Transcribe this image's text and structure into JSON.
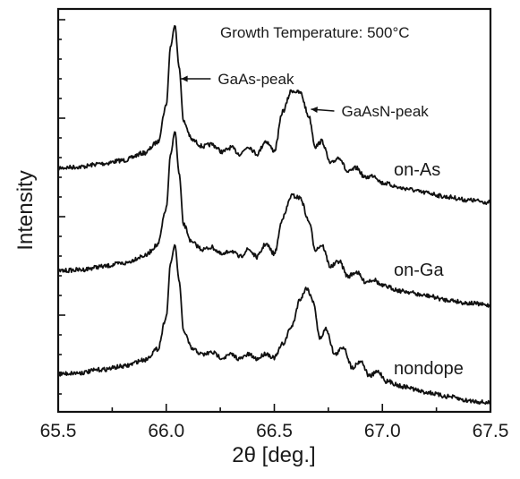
{
  "chart_data": {
    "type": "line",
    "title": "",
    "annotation_header": "Growth Temperature: 500°C",
    "xlabel": "2θ [deg.]",
    "ylabel": "Intensity",
    "xlim": [
      65.5,
      67.5
    ],
    "x_ticks": [
      "65.5",
      "66.0",
      "66.5",
      "67.0",
      "67.5"
    ],
    "y_ticklabels": "none",
    "grid": false,
    "legend": "inline labels at right",
    "series": [
      {
        "name": "on-As",
        "offset": 2,
        "points": [
          [
            65.5,
            0.02
          ],
          [
            65.6,
            0.03
          ],
          [
            65.7,
            0.06
          ],
          [
            65.8,
            0.09
          ],
          [
            65.9,
            0.16
          ],
          [
            65.96,
            0.26
          ],
          [
            66.0,
            0.6
          ],
          [
            66.02,
            1.15
          ],
          [
            66.04,
            1.35
          ],
          [
            66.06,
            0.95
          ],
          [
            66.08,
            0.45
          ],
          [
            66.12,
            0.28
          ],
          [
            66.17,
            0.22
          ],
          [
            66.21,
            0.24
          ],
          [
            66.26,
            0.17
          ],
          [
            66.3,
            0.21
          ],
          [
            66.34,
            0.15
          ],
          [
            66.38,
            0.22
          ],
          [
            66.42,
            0.15
          ],
          [
            66.46,
            0.27
          ],
          [
            66.5,
            0.18
          ],
          [
            66.54,
            0.55
          ],
          [
            66.58,
            0.74
          ],
          [
            66.62,
            0.72
          ],
          [
            66.66,
            0.5
          ],
          [
            66.69,
            0.22
          ],
          [
            66.72,
            0.27
          ],
          [
            66.76,
            0.06
          ],
          [
            66.8,
            0.12
          ],
          [
            66.84,
            -0.02
          ],
          [
            66.88,
            0.02
          ],
          [
            66.92,
            -0.07
          ],
          [
            66.96,
            -0.05
          ],
          [
            67.0,
            -0.12
          ],
          [
            67.1,
            -0.17
          ],
          [
            67.2,
            -0.21
          ],
          [
            67.3,
            -0.25
          ],
          [
            67.4,
            -0.28
          ],
          [
            67.5,
            -0.3
          ]
        ]
      },
      {
        "name": "on-Ga",
        "offset": 1,
        "points": [
          [
            65.5,
            0.02
          ],
          [
            65.6,
            0.03
          ],
          [
            65.7,
            0.06
          ],
          [
            65.8,
            0.09
          ],
          [
            65.9,
            0.16
          ],
          [
            65.96,
            0.26
          ],
          [
            66.0,
            0.6
          ],
          [
            66.02,
            1.1
          ],
          [
            66.04,
            1.32
          ],
          [
            66.06,
            0.92
          ],
          [
            66.08,
            0.45
          ],
          [
            66.12,
            0.28
          ],
          [
            66.17,
            0.22
          ],
          [
            66.21,
            0.24
          ],
          [
            66.26,
            0.17
          ],
          [
            66.3,
            0.21
          ],
          [
            66.34,
            0.15
          ],
          [
            66.38,
            0.22
          ],
          [
            66.42,
            0.15
          ],
          [
            66.46,
            0.27
          ],
          [
            66.5,
            0.18
          ],
          [
            66.54,
            0.52
          ],
          [
            66.58,
            0.72
          ],
          [
            66.62,
            0.7
          ],
          [
            66.66,
            0.48
          ],
          [
            66.69,
            0.22
          ],
          [
            66.72,
            0.26
          ],
          [
            66.76,
            0.06
          ],
          [
            66.8,
            0.11
          ],
          [
            66.84,
            -0.03
          ],
          [
            66.88,
            0.01
          ],
          [
            66.92,
            -0.08
          ],
          [
            66.96,
            -0.06
          ],
          [
            67.0,
            -0.12
          ],
          [
            67.1,
            -0.17
          ],
          [
            67.2,
            -0.21
          ],
          [
            67.3,
            -0.25
          ],
          [
            67.4,
            -0.28
          ],
          [
            67.5,
            -0.3
          ]
        ]
      },
      {
        "name": "nondope",
        "offset": 0,
        "points": [
          [
            65.5,
            0.02
          ],
          [
            65.6,
            0.03
          ],
          [
            65.7,
            0.06
          ],
          [
            65.8,
            0.09
          ],
          [
            65.9,
            0.15
          ],
          [
            65.96,
            0.25
          ],
          [
            66.0,
            0.55
          ],
          [
            66.02,
            1.05
          ],
          [
            66.04,
            1.22
          ],
          [
            66.06,
            0.88
          ],
          [
            66.08,
            0.42
          ],
          [
            66.12,
            0.25
          ],
          [
            66.17,
            0.2
          ],
          [
            66.21,
            0.22
          ],
          [
            66.26,
            0.17
          ],
          [
            66.3,
            0.2
          ],
          [
            66.34,
            0.16
          ],
          [
            66.38,
            0.2
          ],
          [
            66.42,
            0.16
          ],
          [
            66.46,
            0.21
          ],
          [
            66.5,
            0.17
          ],
          [
            66.54,
            0.3
          ],
          [
            66.58,
            0.46
          ],
          [
            66.62,
            0.72
          ],
          [
            66.65,
            0.82
          ],
          [
            66.68,
            0.7
          ],
          [
            66.71,
            0.35
          ],
          [
            66.74,
            0.44
          ],
          [
            66.78,
            0.2
          ],
          [
            66.82,
            0.27
          ],
          [
            66.86,
            0.08
          ],
          [
            66.9,
            0.14
          ],
          [
            66.94,
            0.0
          ],
          [
            66.98,
            0.04
          ],
          [
            67.02,
            -0.05
          ],
          [
            67.1,
            -0.1
          ],
          [
            67.2,
            -0.15
          ],
          [
            67.3,
            -0.19
          ],
          [
            67.4,
            -0.23
          ],
          [
            67.5,
            -0.25
          ]
        ]
      }
    ],
    "annotations": [
      {
        "text": "GaAs-peak",
        "x": 66.04
      },
      {
        "text": "GaAsN-peak",
        "x": 66.62
      }
    ]
  }
}
